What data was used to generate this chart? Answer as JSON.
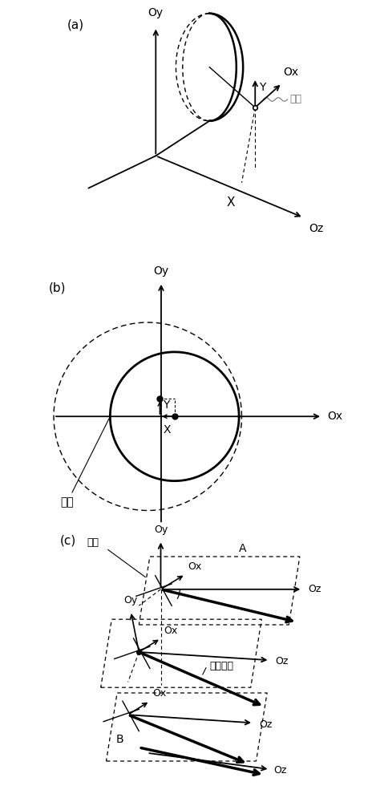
{
  "bg_color": "#ffffff",
  "label_a": "(a)",
  "label_b": "(b)",
  "label_c": "(c)"
}
